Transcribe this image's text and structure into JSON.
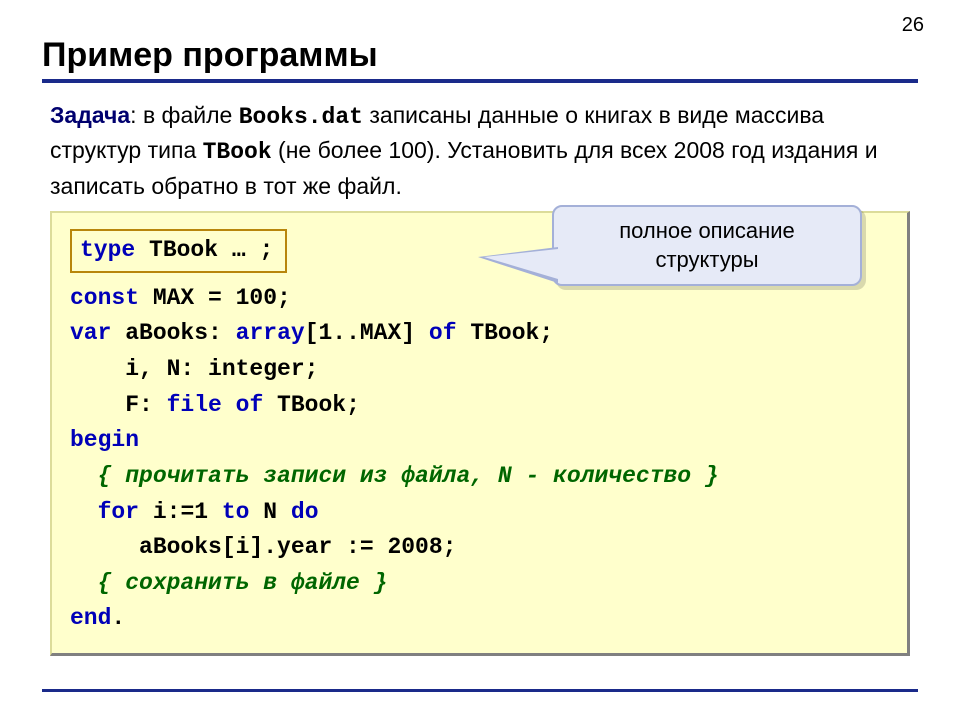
{
  "page_number": "26",
  "title": "Пример программы",
  "task": {
    "label": "Задача",
    "prefix": ": в файле ",
    "filename": "Books.dat",
    "mid1": " записаны данные о книгах в виде массива структур типа ",
    "typename": "TBook",
    "mid2": " (не более 100). Установить для всех 2008 год издания и записать обратно в тот же файл."
  },
  "callout": "полное описание структуры",
  "typebox": {
    "kw": "type",
    "name": " TBook  … ;"
  },
  "code": {
    "l1a": "const",
    "l1b": " MAX = 100;",
    "l2a": "var",
    "l2b": " aBooks: ",
    "l2c": "array",
    "l2d": "[1..MAX] ",
    "l2e": "of",
    "l2f": " TBook;",
    "l3": "    i, N: integer;",
    "l4a": "    F: ",
    "l4b": "file of",
    "l4c": " TBook;",
    "l5": "begin",
    "l6a": "  ",
    "l6b": "{ прочитать записи из файла, N - количество }",
    "l7a": "  ",
    "l7b": "for",
    "l7c": " i:=1 ",
    "l7d": "to",
    "l7e": " N ",
    "l7f": "do",
    "l8": "     aBooks[i].year := 2008;",
    "l9a": "  ",
    "l9b": "{ сохранить в файле }",
    "l10a": "end",
    "l10b": "."
  },
  "colors": {
    "accent": "#1a2a8a",
    "code_bg": "#ffffcc",
    "keyword": "#0000b8",
    "comment": "#006600",
    "typebox_border": "#b8860b",
    "callout_bg": "#e6eaf7",
    "callout_border": "#a4b0d8"
  }
}
